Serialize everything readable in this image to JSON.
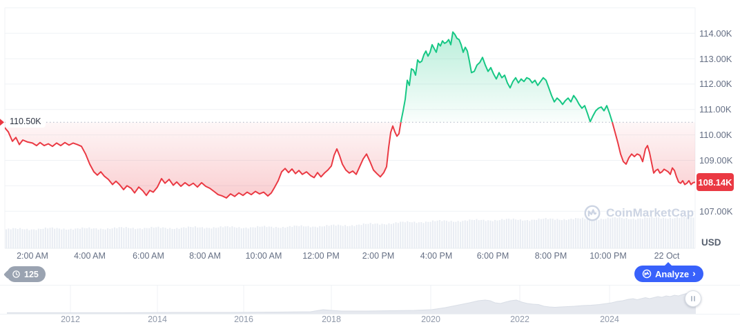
{
  "watermark": {
    "text": "CoinMarketCap"
  },
  "price_axis": {
    "currency": "USD",
    "current_label": "108.14K",
    "ticks": [
      {
        "value": 114,
        "label": "114.00K"
      },
      {
        "value": 113,
        "label": "113.00K"
      },
      {
        "value": 112,
        "label": "112.00K"
      },
      {
        "value": 111,
        "label": "111.00K"
      },
      {
        "value": 110,
        "label": "110.00K"
      },
      {
        "value": 109,
        "label": "109.00K"
      },
      {
        "value": 107,
        "label": "107.00K"
      }
    ]
  },
  "main_chart": {
    "open_label": "110.50K"
  },
  "time_axis": {
    "labels": [
      "2:00 AM",
      "4:00 AM",
      "6:00 AM",
      "8:00 AM",
      "10:00 AM",
      "12:00 PM",
      "2:00 PM",
      "4:00 PM",
      "6:00 PM",
      "8:00 PM",
      "10:00 PM",
      "22 Oct"
    ]
  },
  "toolbar": {
    "history_count": "125",
    "analyze_label": "Analyze",
    "analyze_chevron": "›"
  },
  "navigator": {
    "year_labels": [
      "2012",
      "2014",
      "2016",
      "2018",
      "2020",
      "2022",
      "2024"
    ]
  },
  "colors": {
    "green": "#16c784",
    "red": "#ea3943",
    "blue": "#3861fb",
    "grid": "#eff2f5",
    "axis_line": "#e9edf2",
    "dotted_baseline": "#a9b2c2",
    "volume": "#e9edf3",
    "nav_fill": "#e6e9ef",
    "nav_stroke": "#d9dee6",
    "axis_text": "#656f84"
  },
  "chart_data": {
    "type": "line",
    "title": "Intraday price chart, 21-22 Oct (CoinMarketCap)",
    "currency": "USD",
    "open": 110.5,
    "last": 108.14,
    "high": 114.05,
    "low": 107.5,
    "ylim": [
      106.6,
      115.0
    ],
    "grid": "horizontal",
    "legend": "none",
    "y_grid_values": [
      115,
      114,
      113,
      112,
      111,
      110,
      109,
      108,
      107
    ],
    "y_tick_labels": [
      "114.00K",
      "113.00K",
      "112.00K",
      "111.00K",
      "110.00K",
      "109.00K",
      "107.00K"
    ],
    "x_tick_labels": [
      "2:00 AM",
      "4:00 AM",
      "6:00 AM",
      "8:00 AM",
      "10:00 AM",
      "12:00 PM",
      "2:00 PM",
      "4:00 PM",
      "6:00 PM",
      "8:00 PM",
      "10:00 PM",
      "22 Oct"
    ],
    "series": [
      {
        "name": "price-thousand-usd",
        "points": [
          [
            0,
            110.28
          ],
          [
            5,
            110.12
          ],
          [
            11,
            109.75
          ],
          [
            16,
            109.9
          ],
          [
            21,
            109.62
          ],
          [
            26,
            109.8
          ],
          [
            33,
            109.72
          ],
          [
            40,
            109.68
          ],
          [
            46,
            109.58
          ],
          [
            51,
            109.7
          ],
          [
            57,
            109.58
          ],
          [
            63,
            109.65
          ],
          [
            69,
            109.55
          ],
          [
            75,
            109.68
          ],
          [
            81,
            109.58
          ],
          [
            87,
            109.7
          ],
          [
            93,
            109.6
          ],
          [
            99,
            109.68
          ],
          [
            105,
            109.62
          ],
          [
            111,
            109.55
          ],
          [
            117,
            109.25
          ],
          [
            123,
            108.85
          ],
          [
            129,
            108.55
          ],
          [
            134,
            108.42
          ],
          [
            139,
            108.55
          ],
          [
            144,
            108.38
          ],
          [
            150,
            108.25
          ],
          [
            156,
            108.05
          ],
          [
            161,
            108.18
          ],
          [
            166,
            108.05
          ],
          [
            172,
            107.85
          ],
          [
            177,
            108.0
          ],
          [
            183,
            107.9
          ],
          [
            188,
            107.72
          ],
          [
            194,
            107.95
          ],
          [
            200,
            107.8
          ],
          [
            205,
            107.62
          ],
          [
            210,
            107.82
          ],
          [
            215,
            107.75
          ],
          [
            221,
            107.95
          ],
          [
            227,
            108.28
          ],
          [
            232,
            108.1
          ],
          [
            238,
            108.25
          ],
          [
            244,
            108.02
          ],
          [
            249,
            108.15
          ],
          [
            255,
            107.98
          ],
          [
            261,
            108.12
          ],
          [
            267,
            108.0
          ],
          [
            273,
            108.1
          ],
          [
            279,
            107.95
          ],
          [
            285,
            108.12
          ],
          [
            291,
            107.98
          ],
          [
            297,
            107.9
          ],
          [
            303,
            107.78
          ],
          [
            309,
            107.65
          ],
          [
            315,
            107.6
          ],
          [
            321,
            107.52
          ],
          [
            327,
            107.68
          ],
          [
            333,
            107.58
          ],
          [
            339,
            107.72
          ],
          [
            345,
            107.62
          ],
          [
            351,
            107.75
          ],
          [
            357,
            107.65
          ],
          [
            363,
            107.78
          ],
          [
            369,
            107.68
          ],
          [
            375,
            107.75
          ],
          [
            381,
            107.6
          ],
          [
            386,
            107.72
          ],
          [
            391,
            107.95
          ],
          [
            396,
            108.2
          ],
          [
            401,
            108.55
          ],
          [
            406,
            108.68
          ],
          [
            411,
            108.52
          ],
          [
            416,
            108.66
          ],
          [
            421,
            108.48
          ],
          [
            426,
            108.6
          ],
          [
            431,
            108.45
          ],
          [
            437,
            108.55
          ],
          [
            443,
            108.4
          ],
          [
            448,
            108.32
          ],
          [
            453,
            108.52
          ],
          [
            458,
            108.35
          ],
          [
            463,
            108.5
          ],
          [
            468,
            108.62
          ],
          [
            473,
            108.78
          ],
          [
            477,
            109.2
          ],
          [
            481,
            109.45
          ],
          [
            485,
            109.18
          ],
          [
            489,
            108.85
          ],
          [
            494,
            108.62
          ],
          [
            499,
            108.5
          ],
          [
            504,
            108.58
          ],
          [
            509,
            108.45
          ],
          [
            514,
            108.75
          ],
          [
            519,
            109.05
          ],
          [
            524,
            109.25
          ],
          [
            529,
            108.95
          ],
          [
            534,
            108.62
          ],
          [
            539,
            108.48
          ],
          [
            544,
            108.35
          ],
          [
            549,
            108.52
          ],
          [
            553,
            108.75
          ],
          [
            556,
            109.5
          ],
          [
            559,
            110.1
          ],
          [
            562,
            110.35
          ],
          [
            565,
            110.12
          ],
          [
            568,
            109.95
          ],
          [
            571,
            110.05
          ],
          [
            574,
            110.55
          ],
          [
            577,
            110.95
          ],
          [
            580,
            111.4
          ],
          [
            583,
            112.15
          ],
          [
            586,
            111.95
          ],
          [
            589,
            112.6
          ],
          [
            592,
            112.55
          ],
          [
            595,
            112.35
          ],
          [
            598,
            112.95
          ],
          [
            601,
            112.85
          ],
          [
            604,
            112.9
          ],
          [
            607,
            113.15
          ],
          [
            610,
            113.3
          ],
          [
            613,
            113.1
          ],
          [
            616,
            113.25
          ],
          [
            619,
            113.55
          ],
          [
            622,
            113.4
          ],
          [
            625,
            113.25
          ],
          [
            628,
            113.6
          ],
          [
            631,
            113.5
          ],
          [
            634,
            113.7
          ],
          [
            637,
            113.6
          ],
          [
            640,
            113.65
          ],
          [
            643,
            113.75
          ],
          [
            646,
            113.55
          ],
          [
            649,
            114.05
          ],
          [
            652,
            113.95
          ],
          [
            655,
            113.8
          ],
          [
            658,
            113.75
          ],
          [
            661,
            113.55
          ],
          [
            664,
            113.25
          ],
          [
            667,
            113.45
          ],
          [
            670,
            113.3
          ],
          [
            673,
            112.9
          ],
          [
            676,
            112.45
          ],
          [
            680,
            112.5
          ],
          [
            684,
            112.75
          ],
          [
            688,
            112.85
          ],
          [
            692,
            113.05
          ],
          [
            696,
            112.75
          ],
          [
            700,
            112.5
          ],
          [
            704,
            112.65
          ],
          [
            708,
            112.4
          ],
          [
            712,
            112.2
          ],
          [
            716,
            112.45
          ],
          [
            720,
            112.25
          ],
          [
            724,
            112.35
          ],
          [
            728,
            112.05
          ],
          [
            732,
            111.85
          ],
          [
            736,
            112.1
          ],
          [
            740,
            112.25
          ],
          [
            744,
            112.05
          ],
          [
            748,
            112.2
          ],
          [
            752,
            112.1
          ],
          [
            756,
            112.25
          ],
          [
            760,
            112.2
          ],
          [
            764,
            112.05
          ],
          [
            768,
            112.15
          ],
          [
            772,
            111.95
          ],
          [
            776,
            112.1
          ],
          [
            780,
            112.25
          ],
          [
            784,
            112.15
          ],
          [
            788,
            111.85
          ],
          [
            792,
            111.55
          ],
          [
            796,
            111.3
          ],
          [
            800,
            111.45
          ],
          [
            804,
            111.35
          ],
          [
            808,
            111.2
          ],
          [
            812,
            111.35
          ],
          [
            816,
            111.45
          ],
          [
            820,
            111.3
          ],
          [
            824,
            111.55
          ],
          [
            828,
            111.4
          ],
          [
            832,
            111.2
          ],
          [
            836,
            111.05
          ],
          [
            840,
            111.15
          ],
          [
            844,
            110.85
          ],
          [
            848,
            110.52
          ],
          [
            852,
            110.75
          ],
          [
            856,
            110.95
          ],
          [
            860,
            111.05
          ],
          [
            864,
            111.1
          ],
          [
            868,
            110.95
          ],
          [
            872,
            111.15
          ],
          [
            876,
            110.85
          ],
          [
            880,
            110.5
          ],
          [
            884,
            110.1
          ],
          [
            888,
            109.7
          ],
          [
            892,
            109.25
          ],
          [
            896,
            108.95
          ],
          [
            900,
            108.85
          ],
          [
            904,
            109.1
          ],
          [
            908,
            109.25
          ],
          [
            912,
            109.15
          ],
          [
            916,
            109.25
          ],
          [
            920,
            109.2
          ],
          [
            924,
            108.95
          ],
          [
            928,
            109.45
          ],
          [
            931,
            109.58
          ],
          [
            934,
            109.3
          ],
          [
            937,
            108.9
          ],
          [
            940,
            108.5
          ],
          [
            943,
            108.6
          ],
          [
            946,
            108.65
          ],
          [
            949,
            108.5
          ],
          [
            952,
            108.55
          ],
          [
            955,
            108.65
          ],
          [
            958,
            108.6
          ],
          [
            961,
            108.55
          ],
          [
            964,
            108.45
          ],
          [
            967,
            108.7
          ],
          [
            970,
            108.6
          ],
          [
            973,
            108.35
          ],
          [
            976,
            108.15
          ],
          [
            979,
            108.1
          ],
          [
            982,
            108.2
          ],
          [
            985,
            108.05
          ],
          [
            988,
            108.1
          ],
          [
            991,
            108.2
          ],
          [
            994,
            108.05
          ],
          [
            997,
            108.12
          ],
          [
            1000,
            108.14
          ]
        ]
      }
    ],
    "volume_profile": [
      [
        0,
        27
      ],
      [
        60,
        28
      ],
      [
        120,
        28
      ],
      [
        180,
        29
      ],
      [
        240,
        29
      ],
      [
        300,
        30
      ],
      [
        360,
        30
      ],
      [
        420,
        31
      ],
      [
        470,
        32
      ],
      [
        520,
        34
      ],
      [
        560,
        36
      ],
      [
        600,
        38
      ],
      [
        640,
        39
      ],
      [
        680,
        40
      ],
      [
        720,
        41
      ],
      [
        760,
        41
      ],
      [
        800,
        42
      ],
      [
        840,
        42
      ],
      [
        880,
        43
      ],
      [
        920,
        43
      ],
      [
        960,
        44
      ],
      [
        1000,
        44
      ]
    ],
    "navigator_profile": [
      [
        0,
        1.5
      ],
      [
        80,
        1.5
      ],
      [
        160,
        1.5
      ],
      [
        240,
        2
      ],
      [
        320,
        2
      ],
      [
        390,
        2.5
      ],
      [
        440,
        3
      ],
      [
        458,
        6
      ],
      [
        470,
        5
      ],
      [
        485,
        4
      ],
      [
        520,
        4
      ],
      [
        555,
        4.5
      ],
      [
        590,
        5
      ],
      [
        615,
        6
      ],
      [
        635,
        9
      ],
      [
        655,
        13
      ],
      [
        670,
        16
      ],
      [
        683,
        19
      ],
      [
        693,
        20
      ],
      [
        700,
        19
      ],
      [
        707,
        16
      ],
      [
        715,
        15
      ],
      [
        722,
        17
      ],
      [
        730,
        19
      ],
      [
        738,
        20
      ],
      [
        746,
        17
      ],
      [
        754,
        15
      ],
      [
        762,
        14
      ],
      [
        770,
        13.5
      ],
      [
        778,
        11
      ],
      [
        786,
        10
      ],
      [
        794,
        9.5
      ],
      [
        802,
        10
      ],
      [
        812,
        10.5
      ],
      [
        822,
        11
      ],
      [
        834,
        12
      ],
      [
        846,
        12.5
      ],
      [
        858,
        13.5
      ],
      [
        869,
        15
      ],
      [
        876,
        16
      ],
      [
        884,
        18
      ],
      [
        892,
        19
      ],
      [
        900,
        21
      ],
      [
        907,
        22
      ],
      [
        913,
        20.5
      ],
      [
        919,
        22
      ],
      [
        925,
        23.5
      ],
      [
        931,
        22
      ],
      [
        937,
        23.5
      ],
      [
        943,
        25
      ],
      [
        949,
        24
      ],
      [
        955,
        26
      ],
      [
        961,
        25
      ],
      [
        967,
        27
      ],
      [
        973,
        26
      ],
      [
        979,
        28
      ],
      [
        985,
        29.5
      ],
      [
        990,
        28.5
      ],
      [
        995,
        27.5
      ],
      [
        998,
        27
      ]
    ]
  }
}
